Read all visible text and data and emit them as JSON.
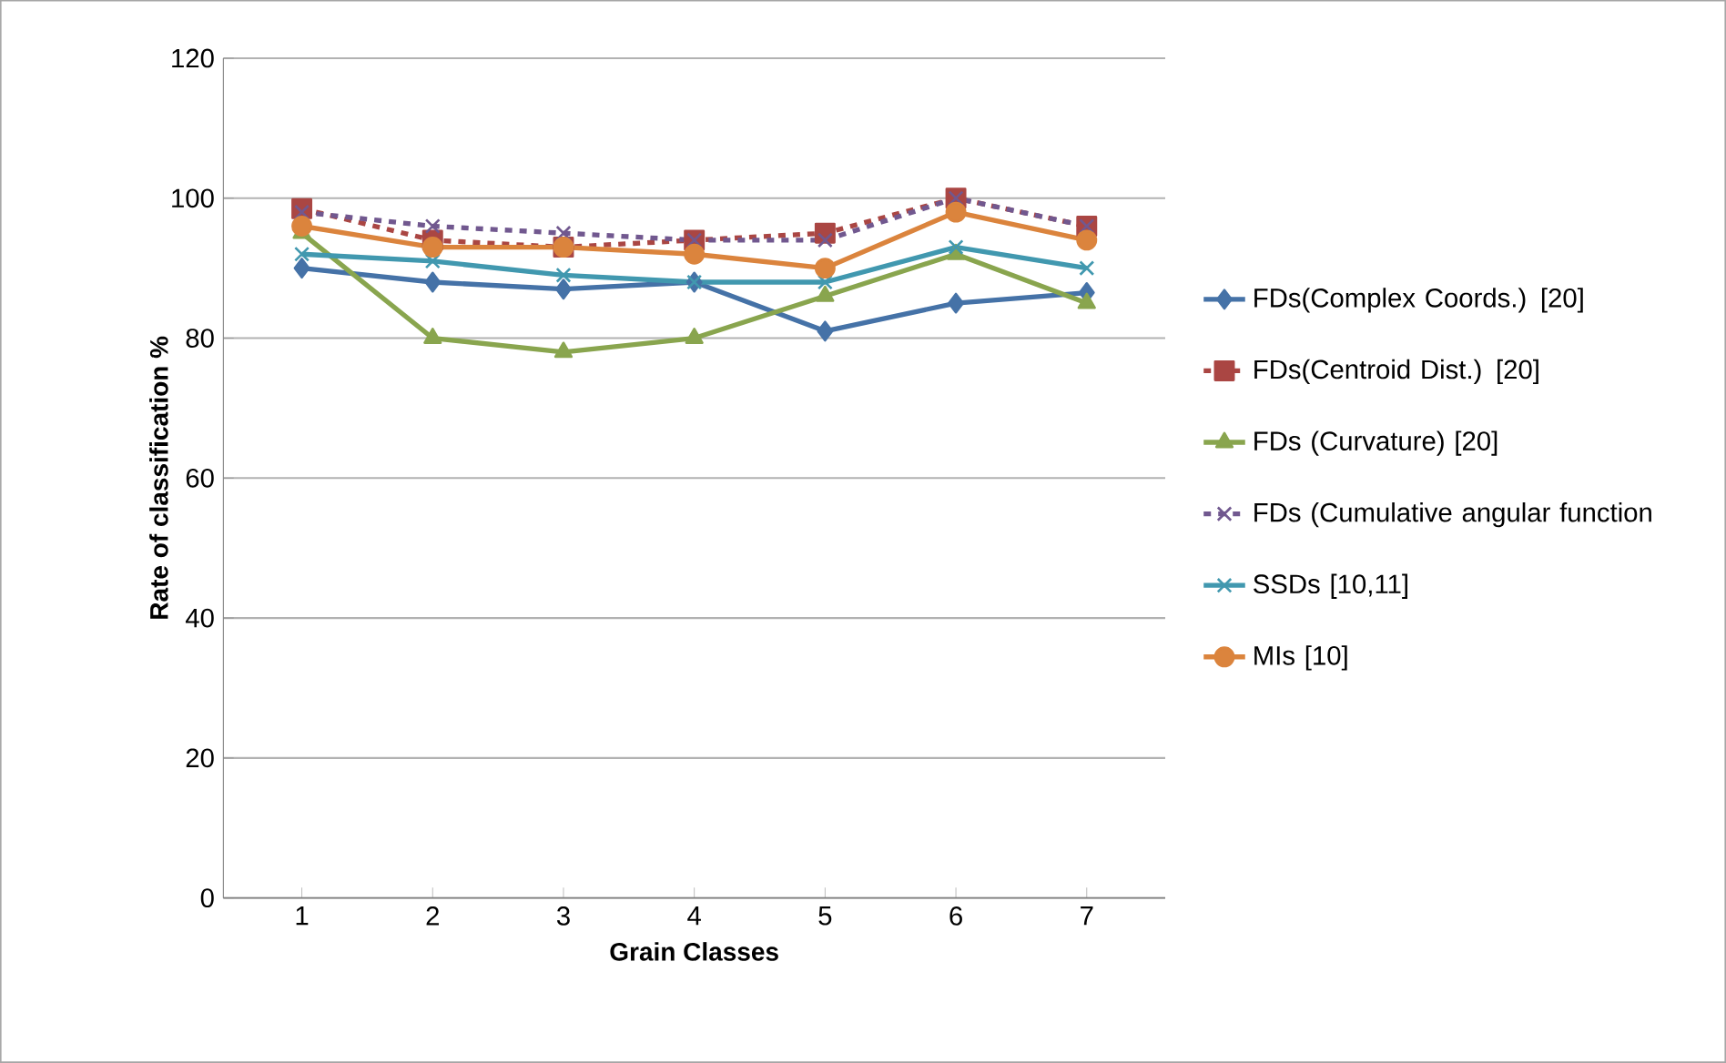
{
  "chart_data": {
    "type": "line",
    "xlabel": "Grain Classes",
    "ylabel": "Rate of classification %",
    "categories": [
      "1",
      "2",
      "3",
      "4",
      "5",
      "6",
      "7"
    ],
    "series": [
      {
        "name": "FDs(Complex Coords.) [20]",
        "color": "#4572a7",
        "marker": "diamond",
        "line_style": "solid",
        "values": [
          90,
          88,
          87,
          88,
          81,
          85,
          86.5
        ]
      },
      {
        "name": "FDs(Centroid Dist.) [20]",
        "color": "#aa4643",
        "marker": "square",
        "line_style": "dashed",
        "values": [
          98.5,
          94,
          93,
          94,
          95,
          100,
          96
        ]
      },
      {
        "name": "FDs (Curvature)  [20]",
        "color": "#89a54e",
        "marker": "triangle",
        "line_style": "solid",
        "values": [
          95,
          80,
          78,
          80,
          86,
          92,
          85
        ]
      },
      {
        "name": "FDs (Cumulative angular function",
        "color": "#71588f",
        "marker": "cross",
        "line_style": "dashed",
        "values": [
          98,
          96,
          95,
          94,
          94,
          100,
          96
        ]
      },
      {
        "name": "SSDs  [10,11]",
        "color": "#4198af",
        "marker": "cross",
        "line_style": "solid",
        "values": [
          92,
          91,
          89,
          88,
          88,
          93,
          90
        ]
      },
      {
        "name": "MIs [10]",
        "color": "#db843d",
        "marker": "circle",
        "line_style": "solid",
        "values": [
          96,
          93,
          93,
          92,
          90,
          98,
          94
        ]
      }
    ],
    "ylim": [
      0,
      120
    ],
    "yticks": [
      0,
      20,
      40,
      60,
      80,
      100,
      120
    ],
    "grid": "y",
    "legend": "right"
  }
}
